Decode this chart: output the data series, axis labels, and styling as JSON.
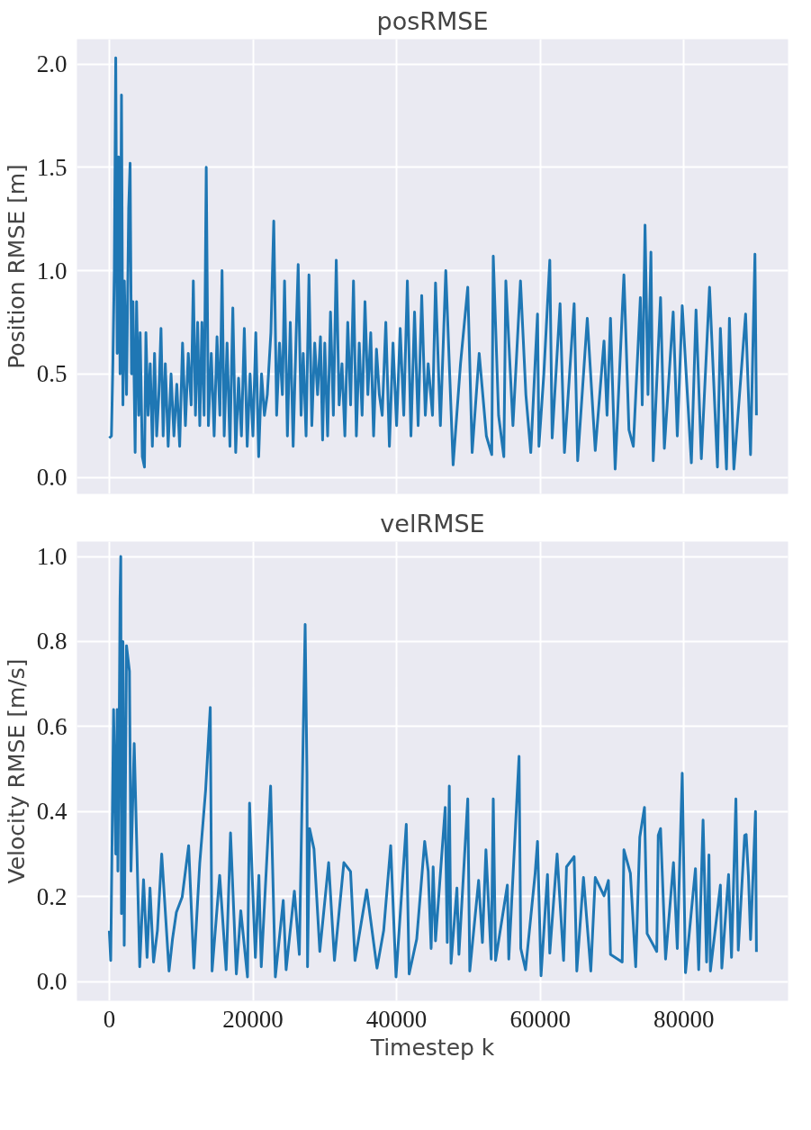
{
  "chart_data": [
    {
      "type": "line",
      "title": "posRMSE",
      "ylabel": "Position RMSE [m]",
      "grid": true,
      "tick_labels": "y",
      "xlim": [
        -4500,
        94500
      ],
      "ylim": [
        -0.08,
        2.12
      ],
      "xticks": [
        0,
        20000,
        40000,
        60000,
        80000
      ],
      "yticks": [
        {
          "value": 0,
          "label": "0.0"
        },
        {
          "value": 0.5,
          "label": "0.5"
        },
        {
          "value": 1,
          "label": "1.0"
        },
        {
          "value": 1.5,
          "label": "1.5"
        },
        {
          "value": 2,
          "label": "2.0"
        }
      ],
      "series": [
        {
          "color": "#1f77b4",
          "x": [
            0,
            300,
            500,
            700,
            900,
            1100,
            1300,
            1500,
            1700,
            1900,
            2100,
            2400,
            2700,
            2900,
            3100,
            3300,
            3600,
            3800,
            4100,
            4300,
            4600,
            4900,
            5100,
            5400,
            5700,
            6000,
            6300,
            6600,
            6900,
            7200,
            7500,
            7800,
            8200,
            8600,
            9000,
            9400,
            9800,
            10200,
            10600,
            11000,
            11400,
            11700,
            12000,
            12300,
            12600,
            12900,
            13200,
            13500,
            13800,
            14200,
            14600,
            15000,
            15400,
            15700,
            16000,
            16400,
            16800,
            17200,
            17600,
            18000,
            18400,
            18800,
            19200,
            19600,
            20000,
            20400,
            20800,
            21200,
            21600,
            22000,
            22500,
            22900,
            23300,
            23700,
            24100,
            24400,
            24800,
            25200,
            25600,
            26000,
            26300,
            26700,
            27000,
            27400,
            27800,
            28200,
            28600,
            29000,
            29400,
            29700,
            30000,
            30400,
            30800,
            31200,
            31600,
            32000,
            32400,
            32800,
            33200,
            33600,
            34000,
            34400,
            34800,
            35200,
            35600,
            36000,
            36400,
            36800,
            37200,
            37600,
            38000,
            38500,
            39000,
            39500,
            40000,
            40500,
            41000,
            41500,
            42000,
            42500,
            43000,
            43500,
            44000,
            44400,
            45000,
            45420,
            46100,
            46850,
            47870,
            48900,
            49910,
            50520,
            51500,
            52500,
            53250,
            53460,
            54200,
            54930,
            55210,
            56200,
            57250,
            58000,
            58680,
            59620,
            59820,
            60500,
            61330,
            61660,
            62760,
            63370,
            64720,
            65210,
            66550,
            67660,
            68880,
            69300,
            69780,
            70430,
            71650,
            72350,
            72960,
            73940,
            74200,
            74590,
            75000,
            75410,
            75730,
            76750,
            77280,
            78510,
            79080,
            79770,
            81040,
            81690,
            82430,
            83570,
            84670,
            85080,
            85930,
            86340,
            86960,
            88590,
            89280,
            89890,
            90100
          ],
          "values": [
            0.19,
            0.2,
            0.55,
            1.0,
            2.03,
            0.6,
            1.55,
            0.5,
            1.85,
            0.35,
            0.95,
            0.4,
            1.3,
            1.52,
            0.5,
            0.85,
            0.12,
            0.85,
            0.3,
            0.7,
            0.1,
            0.05,
            0.7,
            0.3,
            0.55,
            0.15,
            0.6,
            0.2,
            0.4,
            0.72,
            0.2,
            0.55,
            0.15,
            0.5,
            0.2,
            0.45,
            0.15,
            0.65,
            0.25,
            0.6,
            0.35,
            0.95,
            0.3,
            0.75,
            0.25,
            0.75,
            0.3,
            1.5,
            0.25,
            0.6,
            0.2,
            0.68,
            0.3,
            1.0,
            0.2,
            0.65,
            0.15,
            0.82,
            0.12,
            0.48,
            0.2,
            0.72,
            0.15,
            0.5,
            0.2,
            0.7,
            0.1,
            0.5,
            0.3,
            0.4,
            0.7,
            1.24,
            0.3,
            0.65,
            0.4,
            0.95,
            0.2,
            0.75,
            0.15,
            0.67,
            1.03,
            0.3,
            0.6,
            0.2,
            0.98,
            0.25,
            0.65,
            0.4,
            0.68,
            0.18,
            0.65,
            0.2,
            0.8,
            0.3,
            1.05,
            0.35,
            0.55,
            0.2,
            0.75,
            0.35,
            0.95,
            0.2,
            0.65,
            0.3,
            0.85,
            0.4,
            0.7,
            0.2,
            0.62,
            0.4,
            0.3,
            0.75,
            0.15,
            0.65,
            0.25,
            0.72,
            0.3,
            0.95,
            0.2,
            0.8,
            0.25,
            0.88,
            0.3,
            0.55,
            0.3,
            0.94,
            0.25,
            1.0,
            0.06,
            0.55,
            0.92,
            0.12,
            0.6,
            0.2,
            0.11,
            1.07,
            0.3,
            0.1,
            0.95,
            0.25,
            0.95,
            0.4,
            0.12,
            0.79,
            0.15,
            0.5,
            1.05,
            0.19,
            0.84,
            0.12,
            0.84,
            0.08,
            0.77,
            0.13,
            0.66,
            0.3,
            0.77,
            0.04,
            0.98,
            0.23,
            0.15,
            0.87,
            0.35,
            1.22,
            0.4,
            1.09,
            0.08,
            0.87,
            0.14,
            0.8,
            0.2,
            0.83,
            0.07,
            0.81,
            0.09,
            0.92,
            0.05,
            0.72,
            0.04,
            0.77,
            0.04,
            0.79,
            0.11,
            1.08,
            0.3
          ]
        }
      ]
    },
    {
      "type": "line",
      "title": "velRMSE",
      "ylabel": "Velocity RMSE [m/s]",
      "xlabel": "Timestep k",
      "grid": true,
      "xlim": [
        -4500,
        94500
      ],
      "ylim": [
        -0.045,
        1.035
      ],
      "xticks": [
        0,
        20000,
        40000,
        60000,
        80000
      ],
      "yticks": [
        {
          "value": 0,
          "label": "0.0"
        },
        {
          "value": 0.2,
          "label": "0.2"
        },
        {
          "value": 0.4,
          "label": "0.4"
        },
        {
          "value": 0.6,
          "label": "0.6"
        },
        {
          "value": 0.8,
          "label": "0.8"
        },
        {
          "value": 1,
          "label": "1.0"
        }
      ],
      "series": [
        {
          "color": "#1f77b4",
          "x": [
            0,
            200,
            600,
            900,
            1100,
            1200,
            1400,
            1500,
            1600,
            1700,
            1900,
            2080,
            2400,
            2810,
            3020,
            3470,
            3830,
            4240,
            4770,
            5260,
            5670,
            6160,
            6700,
            7300,
            8320,
            8800,
            9340,
            10150,
            11050,
            11780,
            12600,
            13410,
            14060,
            14310,
            15370,
            16270,
            16880,
            17690,
            18310,
            19240,
            19530,
            19930,
            20340,
            20830,
            21160,
            22460,
            23120,
            24220,
            24620,
            25770,
            26460,
            27270,
            27520,
            27600,
            27890,
            28500,
            29310,
            30540,
            31350,
            32660,
            33590,
            34210,
            35840,
            37270,
            38200,
            39180,
            39920,
            41350,
            41750,
            42800,
            43910,
            44400,
            44810,
            45090,
            45420,
            46770,
            47050,
            47340,
            47580,
            48400,
            48680,
            49910,
            50190,
            51420,
            51950,
            52440,
            53170,
            53460,
            53780,
            55420,
            55620,
            57050,
            57290,
            57950,
            59290,
            59620,
            60110,
            61010,
            61330,
            62350,
            63250,
            63660,
            64720,
            65090,
            66020,
            67040,
            67660,
            68880,
            69490,
            69780,
            71410,
            71650,
            72550,
            73290,
            73860,
            74510,
            74880,
            76220,
            76430,
            76750,
            77450,
            78550,
            79080,
            79770,
            80220,
            81610,
            82060,
            82670,
            83160,
            83490,
            83690,
            85080,
            85280,
            86220,
            86630,
            87240,
            87570,
            88460,
            88670,
            88990,
            89280,
            89970,
            90100
          ],
          "values": [
            0.12,
            0.05,
            0.64,
            0.3,
            0.64,
            0.26,
            0.65,
            0.9,
            1.0,
            0.16,
            0.8,
            0.085,
            0.79,
            0.73,
            0.26,
            0.56,
            0.32,
            0.035,
            0.24,
            0.057,
            0.22,
            0.046,
            0.12,
            0.3,
            0.025,
            0.1,
            0.163,
            0.199,
            0.32,
            0.032,
            0.28,
            0.45,
            0.645,
            0.025,
            0.25,
            0.028,
            0.35,
            0.018,
            0.167,
            0.011,
            0.42,
            0.234,
            0.057,
            0.25,
            0.035,
            0.46,
            0.011,
            0.191,
            0.028,
            0.213,
            0.064,
            0.84,
            0.49,
            0.035,
            0.36,
            0.312,
            0.071,
            0.28,
            0.05,
            0.28,
            0.259,
            0.05,
            0.216,
            0.032,
            0.12,
            0.32,
            0.011,
            0.37,
            0.018,
            0.1,
            0.33,
            0.26,
            0.078,
            0.27,
            0.096,
            0.41,
            0.092,
            0.46,
            0.043,
            0.22,
            0.064,
            0.43,
            0.025,
            0.238,
            0.092,
            0.31,
            0.053,
            0.43,
            0.05,
            0.227,
            0.053,
            0.53,
            0.078,
            0.028,
            0.255,
            0.33,
            0.014,
            0.252,
            0.067,
            0.3,
            0.05,
            0.27,
            0.294,
            0.025,
            0.245,
            0.025,
            0.245,
            0.202,
            0.238,
            0.064,
            0.046,
            0.31,
            0.255,
            0.035,
            0.34,
            0.41,
            0.113,
            0.071,
            0.344,
            0.36,
            0.053,
            0.28,
            0.078,
            0.49,
            0.021,
            0.266,
            0.028,
            0.38,
            0.046,
            0.298,
            0.025,
            0.227,
            0.032,
            0.252,
            0.057,
            0.43,
            0.074,
            0.344,
            0.346,
            0.248,
            0.099,
            0.4,
            0.07
          ]
        }
      ]
    }
  ]
}
